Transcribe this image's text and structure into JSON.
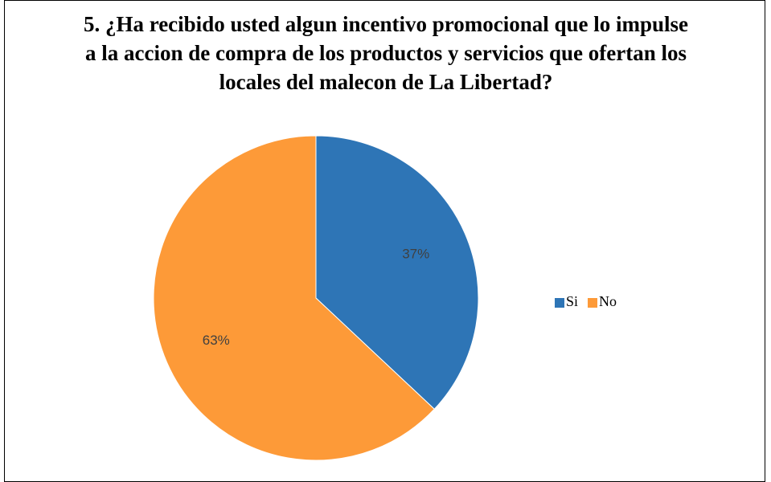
{
  "chart_data": {
    "type": "pie",
    "title": "5. ¿Ha recibido usted algun incentivo promocional que lo impulse a la accion de compra de los productos y servicios que ofertan los locales del malecon de La Libertad?",
    "categories": [
      "Si",
      "No"
    ],
    "values": [
      37,
      63
    ],
    "value_labels": [
      "37%",
      "63%"
    ],
    "colors": [
      "#2e75b6",
      "#fd9a38"
    ],
    "legend": "right"
  }
}
